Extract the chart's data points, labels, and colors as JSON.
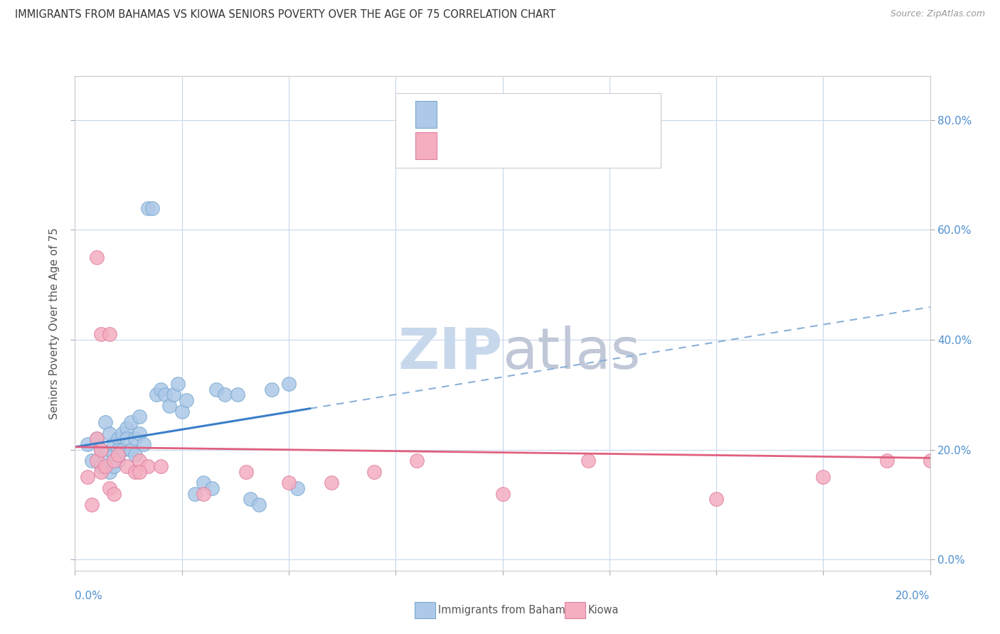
{
  "title": "IMMIGRANTS FROM BAHAMAS VS KIOWA SENIORS POVERTY OVER THE AGE OF 75 CORRELATION CHART",
  "source": "Source: ZipAtlas.com",
  "ylabel": "Seniors Poverty Over the Age of 75",
  "xlim": [
    0.0,
    0.2
  ],
  "ylim": [
    -0.02,
    0.88
  ],
  "yticks": [
    0.0,
    0.2,
    0.4,
    0.6,
    0.8
  ],
  "ytick_labels": [
    "0.0%",
    "20.0%",
    "40.0%",
    "60.0%",
    "80.0%"
  ],
  "color_bahamas": "#adc8e8",
  "color_kiowa": "#f4aec0",
  "edge_bahamas": "#7aaad0",
  "edge_kiowa": "#e080a0",
  "trendline_blue_color": "#3a7ec8",
  "trendline_pink_color": "#e06080",
  "trendline_dashed_color": "#8ab0d8",
  "background_color": "#ffffff",
  "grid_color": "#c8d8ec",
  "title_color": "#333333",
  "axis_label_color": "#5090d0",
  "source_color": "#999999",
  "ylabel_color": "#555555",
  "watermark_zip_color": "#c8d8ec",
  "watermark_atlas_color": "#c0c8d8",
  "legend_border_color": "#cccccc",
  "legend_bg_color": "#ffffff",
  "bahamas_x": [
    0.003,
    0.004,
    0.005,
    0.006,
    0.006,
    0.007,
    0.007,
    0.008,
    0.008,
    0.009,
    0.009,
    0.009,
    0.01,
    0.01,
    0.01,
    0.011,
    0.011,
    0.012,
    0.012,
    0.013,
    0.013,
    0.014,
    0.014,
    0.015,
    0.015,
    0.016,
    0.017,
    0.018,
    0.019,
    0.02,
    0.021,
    0.022,
    0.023,
    0.024,
    0.025,
    0.026,
    0.028,
    0.03,
    0.032,
    0.033,
    0.035,
    0.038,
    0.041,
    0.043,
    0.046,
    0.05,
    0.052
  ],
  "bahamas_y": [
    0.21,
    0.18,
    0.22,
    0.2,
    0.17,
    0.25,
    0.19,
    0.23,
    0.16,
    0.21,
    0.19,
    0.17,
    0.22,
    0.2,
    0.18,
    0.23,
    0.2,
    0.24,
    0.22,
    0.2,
    0.25,
    0.22,
    0.19,
    0.26,
    0.23,
    0.21,
    0.64,
    0.64,
    0.3,
    0.31,
    0.3,
    0.28,
    0.3,
    0.32,
    0.27,
    0.29,
    0.12,
    0.14,
    0.13,
    0.31,
    0.3,
    0.3,
    0.11,
    0.1,
    0.31,
    0.32,
    0.13
  ],
  "kiowa_x": [
    0.003,
    0.004,
    0.005,
    0.005,
    0.006,
    0.006,
    0.007,
    0.008,
    0.008,
    0.009,
    0.009,
    0.01,
    0.012,
    0.014,
    0.015,
    0.017,
    0.02,
    0.03,
    0.04,
    0.05,
    0.06,
    0.07,
    0.08,
    0.1,
    0.12,
    0.15,
    0.175,
    0.19,
    0.2,
    0.005,
    0.006,
    0.015
  ],
  "kiowa_y": [
    0.15,
    0.1,
    0.18,
    0.55,
    0.16,
    0.41,
    0.17,
    0.13,
    0.41,
    0.12,
    0.18,
    0.19,
    0.17,
    0.16,
    0.18,
    0.17,
    0.17,
    0.12,
    0.16,
    0.14,
    0.14,
    0.16,
    0.18,
    0.12,
    0.18,
    0.11,
    0.15,
    0.18,
    0.18,
    0.22,
    0.2,
    0.16
  ],
  "trend_b_x0": 0.0,
  "trend_b_y0": 0.205,
  "trend_b_x1": 0.055,
  "trend_b_y1": 0.275,
  "trend_d_x1": 0.2,
  "trend_d_y1": 0.455,
  "trend_k_y0": 0.205,
  "trend_k_y1": 0.185
}
